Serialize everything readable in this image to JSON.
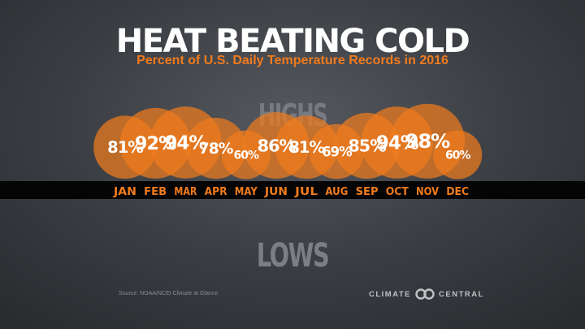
{
  "title": "HEAT BEATING COLD",
  "subtitle": "Percent of U.S. Daily Temperature Records in 2016",
  "highs_label": "HIGHS",
  "lows_label": "LOWS",
  "source": "Source: NOAA/NCEI Climate at Glance",
  "logo": {
    "left": "CLIMATE",
    "right": "CENTRAL",
    "icon": "climate-central-logo-icon"
  },
  "colors": {
    "bubble": "#f07b1d",
    "month": "#f07b1d",
    "bar": "#050505"
  },
  "chart_data": {
    "type": "bubble",
    "categories": [
      "JAN",
      "FEB",
      "MAR",
      "APR",
      "MAY",
      "JUN",
      "JUL",
      "AUG",
      "SEP",
      "OCT",
      "NOV",
      "DEC"
    ],
    "values": [
      81,
      92,
      94,
      78,
      60,
      86,
      81,
      69,
      85,
      94,
      98,
      60
    ],
    "labels": [
      "81%",
      "92%",
      "94%",
      "78%",
      "60%",
      "86%",
      "81%",
      "69%",
      "85%",
      "94%",
      "98%",
      "60%"
    ],
    "series": [
      {
        "name": "HIGHS",
        "values": [
          81,
          92,
          94,
          78,
          60,
          86,
          81,
          69,
          85,
          94,
          98,
          60
        ]
      }
    ]
  }
}
